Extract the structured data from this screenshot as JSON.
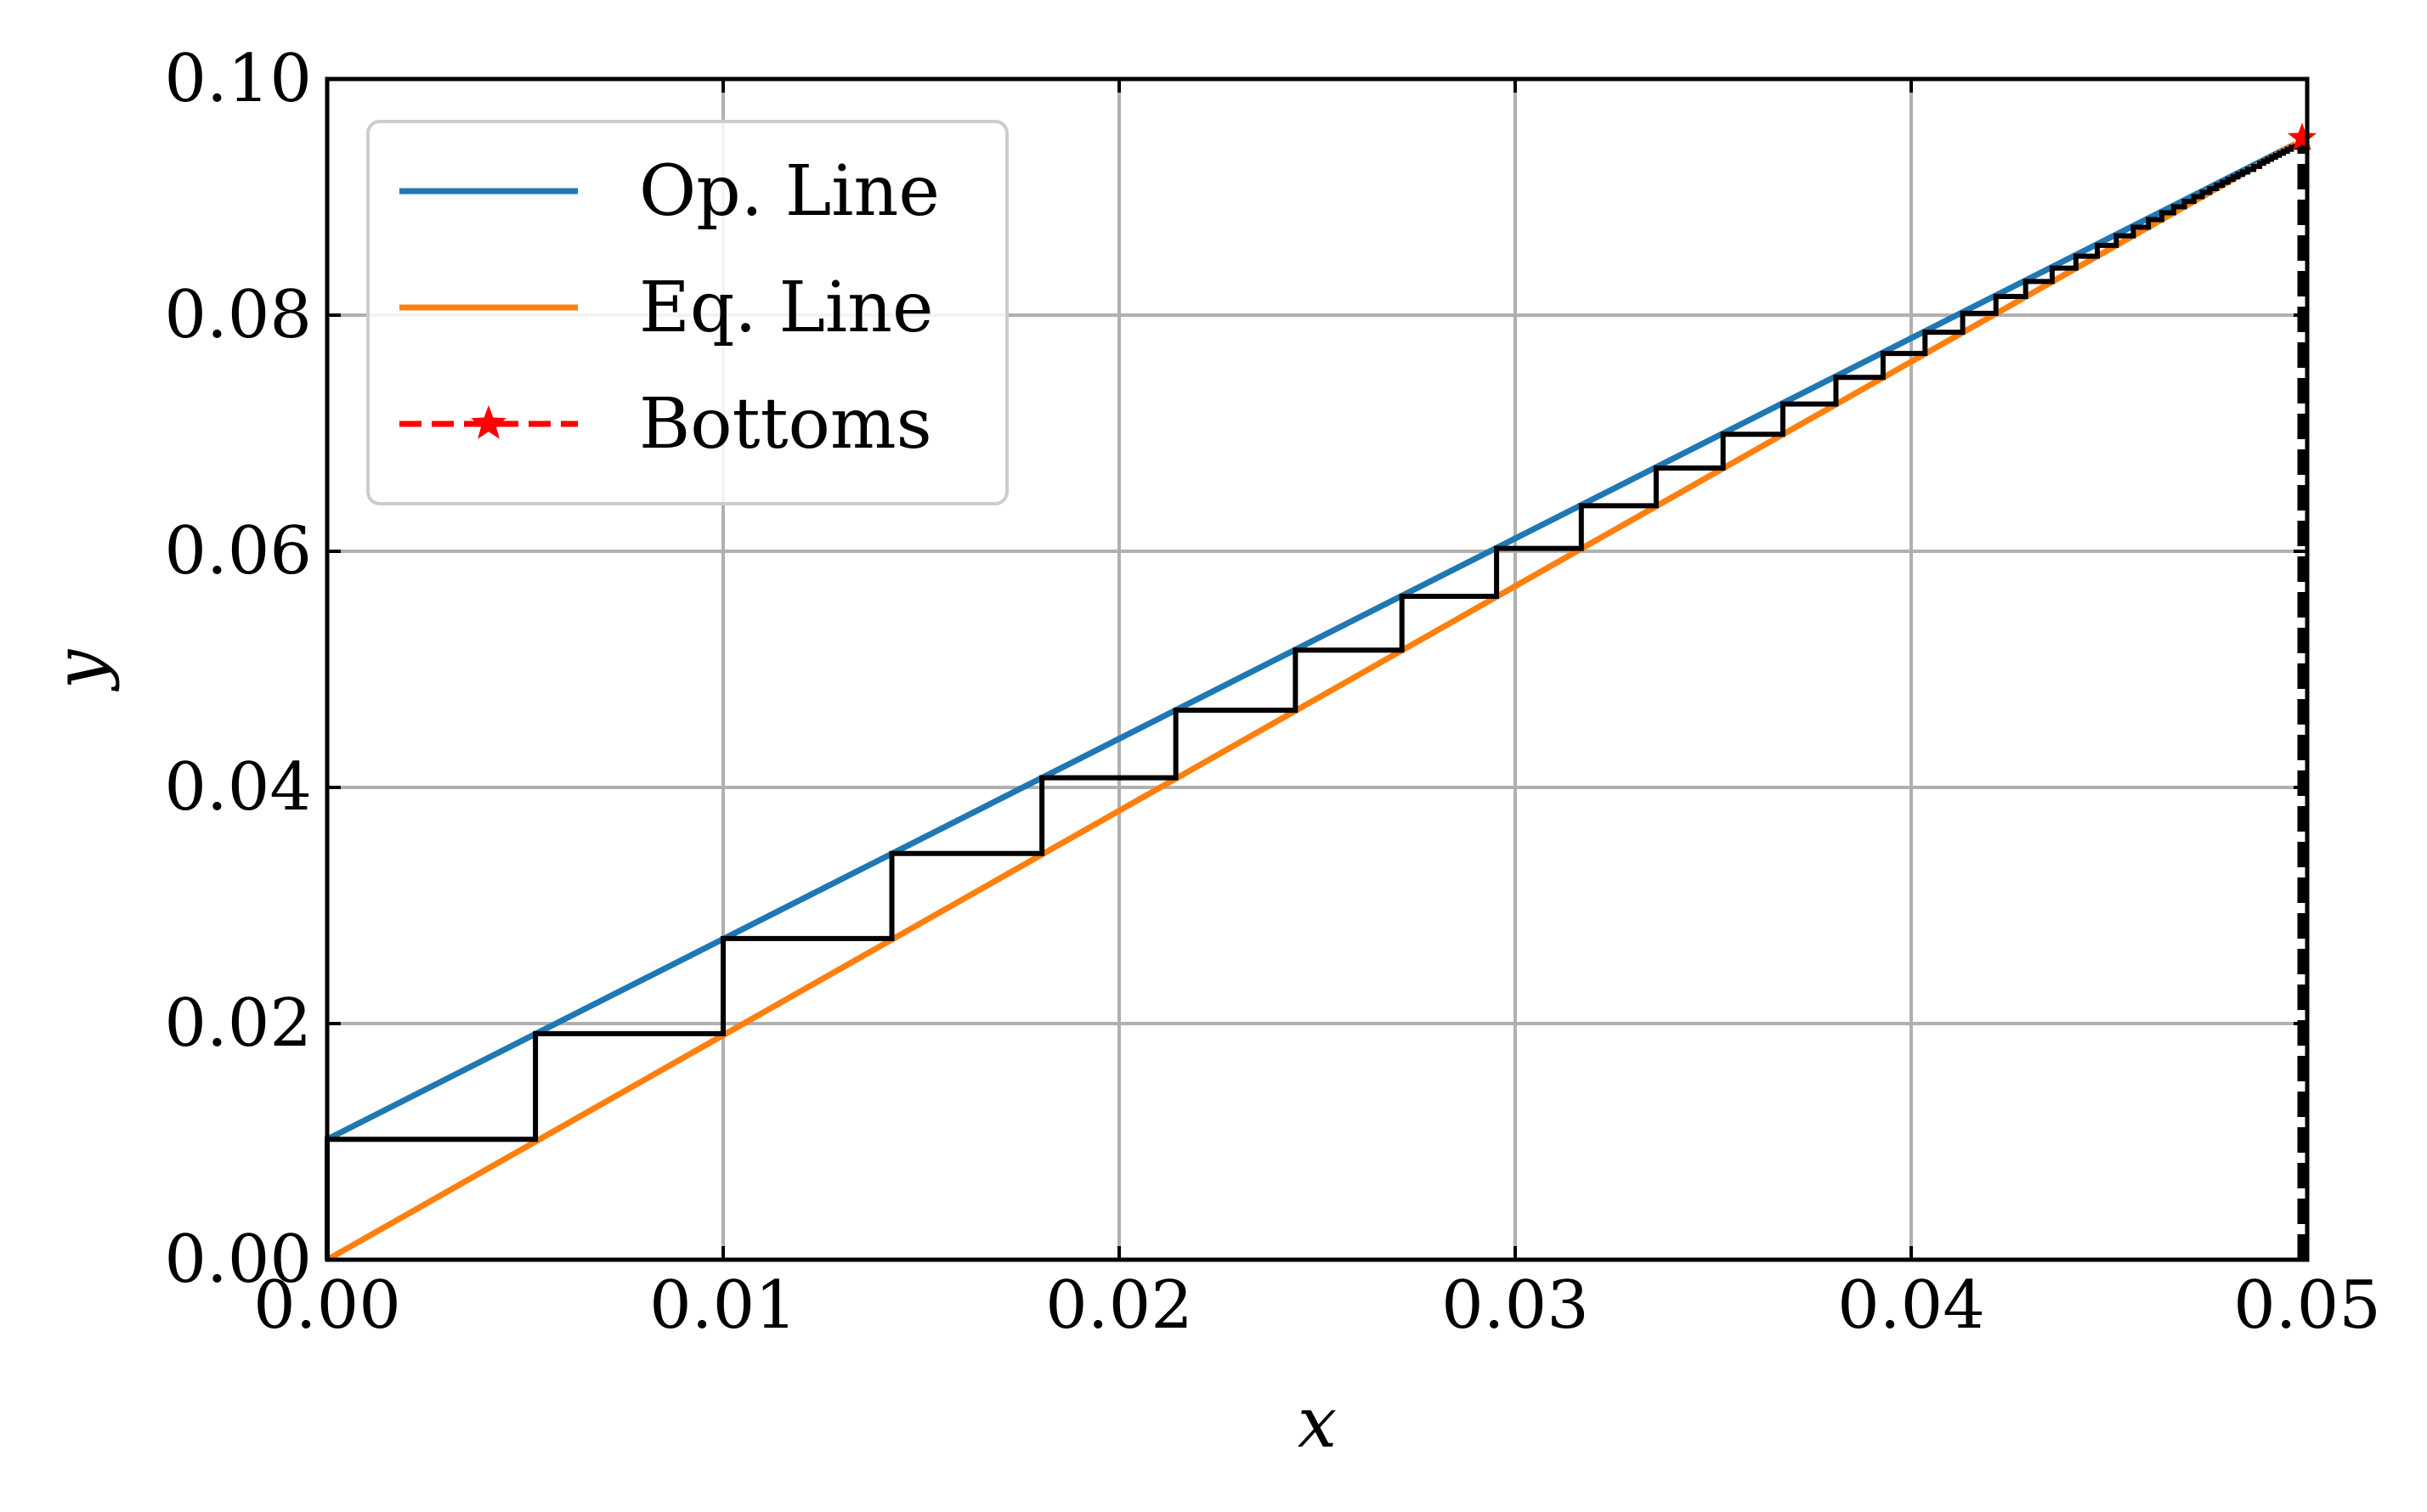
{
  "chart_data": {
    "type": "line",
    "xlabel": "x",
    "ylabel": "y",
    "xlim": [
      0.0,
      0.05
    ],
    "ylim": [
      0.0,
      0.1
    ],
    "x_ticks": [
      "0.00",
      "0.01",
      "0.02",
      "0.03",
      "0.04",
      "0.05"
    ],
    "y_ticks": [
      "0.00",
      "0.02",
      "0.04",
      "0.06",
      "0.08",
      "0.10"
    ],
    "grid": true,
    "legend_position": "upper-left",
    "series": [
      {
        "name": "Op. Line",
        "color": "#1f77b4",
        "style": "solid",
        "x": [
          0.0,
          0.0497
        ],
        "y": [
          0.0102,
          0.0945
        ]
      },
      {
        "name": "Eq. Line",
        "color": "#ff7f0e",
        "style": "solid",
        "x": [
          0.0,
          0.0497
        ],
        "y": [
          0.0,
          0.0945
        ]
      },
      {
        "name": "Bottoms",
        "color": "#ff0000",
        "style": "dashed",
        "marker": "star",
        "x": [
          0.05,
          0.05
        ],
        "y": [
          0.0,
          0.095
        ]
      }
    ],
    "stages": {
      "color": "#000000",
      "x": [
        0.0,
        0.00526,
        0.01,
        0.01426,
        0.01805,
        0.02143,
        0.02445,
        0.02714,
        0.02953,
        0.03167,
        0.03356,
        0.03525,
        0.03676,
        0.0381,
        0.03929,
        0.04035,
        0.0413,
        0.04214,
        0.04289,
        0.04356,
        0.04416,
        0.0447,
        0.04518,
        0.04561,
        0.04599,
        0.04633,
        0.04663,
        0.0469,
        0.04714,
        0.04735,
        0.04754,
        0.04771,
        0.04786,
        0.048,
        0.04813,
        0.04825,
        0.04837,
        0.0485,
        0.04865,
        0.0488,
        0.0489,
        0.049,
        0.0491,
        0.0492,
        0.0493,
        0.0494,
        0.0495,
        0.0496,
        0.0497
      ],
      "y": [
        0.0102,
        0.01915,
        0.0272,
        0.03441,
        0.04082,
        0.04654,
        0.05163,
        0.05619,
        0.06024,
        0.06386,
        0.06705,
        0.06991,
        0.07247,
        0.07473,
        0.07675,
        0.07855,
        0.08015,
        0.08158,
        0.08285,
        0.08398,
        0.08499,
        0.08591,
        0.08672,
        0.08745,
        0.08809,
        0.08867,
        0.08918,
        0.08963,
        0.09004,
        0.0904,
        0.09072,
        0.091,
        0.09126,
        0.0915,
        0.09172,
        0.09192,
        0.09212,
        0.09234,
        0.0926,
        0.09286,
        0.09303,
        0.0932,
        0.09337,
        0.09354,
        0.09371,
        0.09388,
        0.09405,
        0.09422,
        0.0945
      ]
    }
  }
}
